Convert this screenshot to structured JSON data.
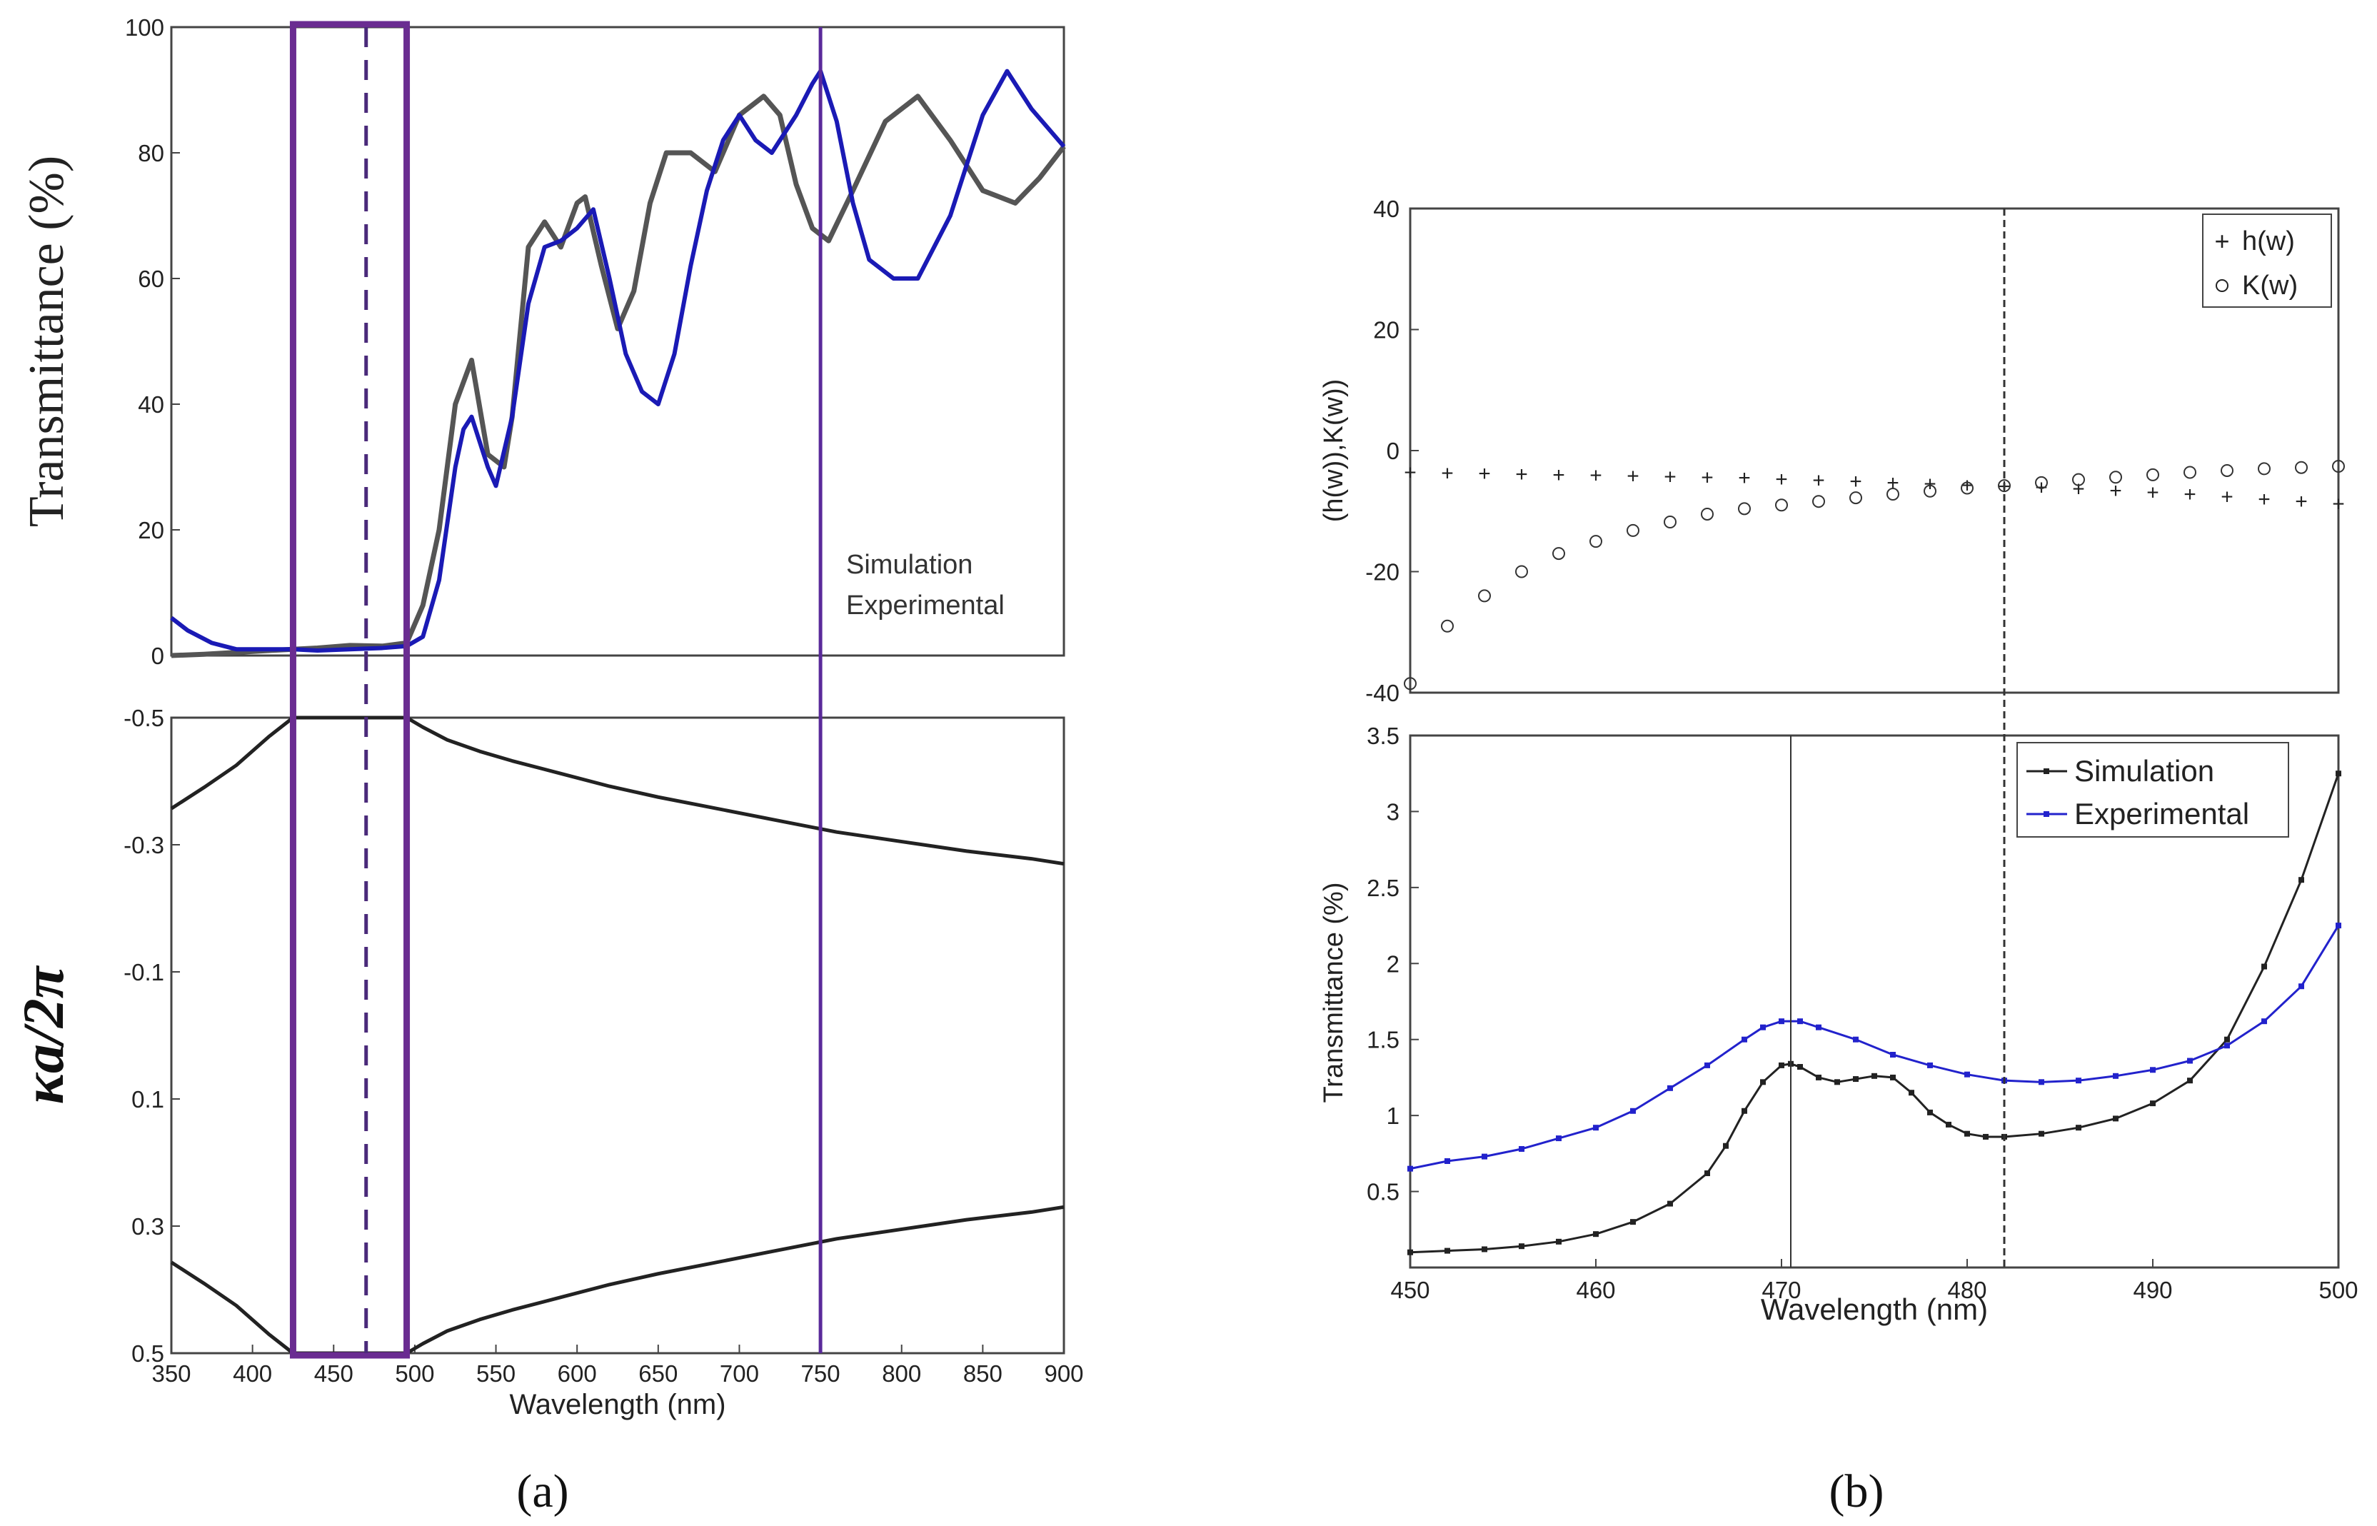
{
  "panel_labels": {
    "a": "(a)",
    "b": "(b)"
  },
  "chart_data": [
    {
      "id": "a-top",
      "type": "line",
      "ylabel": "Transmittance (%)",
      "xlabel": "",
      "xlim": [
        350,
        900
      ],
      "ylim": [
        0,
        100
      ],
      "yticks": [
        "0",
        "20",
        "40",
        "60",
        "80",
        "100"
      ],
      "legend": [
        "Simulation",
        "Experimental"
      ],
      "legend_position": "bottom-right",
      "colors": {
        "Simulation": "#555555",
        "Experimental": "#1a1ab5"
      },
      "series": [
        {
          "name": "Simulation",
          "x": [
            350,
            370,
            390,
            410,
            425,
            440,
            460,
            480,
            495,
            505,
            515,
            525,
            535,
            545,
            555,
            560,
            570,
            580,
            590,
            600,
            605,
            615,
            625,
            635,
            645,
            655,
            670,
            685,
            700,
            715,
            725,
            735,
            745,
            755,
            770,
            790,
            810,
            830,
            850,
            870,
            885,
            900
          ],
          "y": [
            0,
            0.2,
            0.5,
            0.8,
            1,
            1.2,
            1.6,
            1.5,
            2,
            8,
            20,
            40,
            47,
            32,
            30,
            38,
            65,
            69,
            65,
            72,
            73,
            62,
            52,
            58,
            72,
            80,
            80,
            77,
            86,
            89,
            86,
            75,
            68,
            66,
            74,
            85,
            89,
            82,
            74,
            72,
            76,
            81
          ]
        },
        {
          "name": "Experimental",
          "x": [
            350,
            360,
            375,
            390,
            410,
            425,
            440,
            460,
            480,
            495,
            505,
            515,
            525,
            530,
            535,
            545,
            550,
            560,
            570,
            580,
            590,
            600,
            610,
            620,
            630,
            640,
            650,
            660,
            670,
            680,
            690,
            700,
            710,
            720,
            735,
            745,
            750,
            760,
            770,
            780,
            795,
            810,
            830,
            850,
            865,
            880,
            900
          ],
          "y": [
            6,
            4,
            2,
            1,
            1,
            1,
            0.8,
            1,
            1.2,
            1.5,
            3,
            12,
            30,
            36,
            38,
            30,
            27,
            38,
            56,
            65,
            66,
            68,
            71,
            60,
            48,
            42,
            40,
            48,
            62,
            74,
            82,
            86,
            82,
            80,
            86,
            91,
            93,
            85,
            72,
            63,
            60,
            60,
            70,
            86,
            93,
            87,
            81
          ]
        }
      ]
    },
    {
      "id": "a-bottom",
      "type": "line",
      "ylabel": "κa/2π",
      "xlabel": "Wavelength (nm)",
      "xlim": [
        350,
        900
      ],
      "ylim": [
        -0.5,
        0.5
      ],
      "xticks": [
        "350",
        "400",
        "450",
        "500",
        "550",
        "600",
        "650",
        "700",
        "750",
        "800",
        "850",
        "900"
      ],
      "yticks": [
        "-0.5",
        "-0.3",
        "-0.1",
        "0.1",
        "0.3",
        "0.5"
      ],
      "series": [
        {
          "name": "upper",
          "x": [
            350,
            370,
            390,
            410,
            425,
            440,
            460,
            480,
            495,
            505,
            520,
            540,
            560,
            590,
            620,
            650,
            680,
            720,
            760,
            800,
            840,
            880,
            900
          ],
          "y": [
            -0.357,
            -0.39,
            -0.425,
            -0.47,
            -0.5,
            -0.5,
            -0.5,
            -0.5,
            -0.5,
            -0.485,
            -0.465,
            -0.447,
            -0.432,
            -0.412,
            -0.392,
            -0.375,
            -0.36,
            -0.34,
            -0.32,
            -0.305,
            -0.29,
            -0.278,
            -0.27
          ]
        },
        {
          "name": "lower",
          "x": [
            350,
            370,
            390,
            410,
            425,
            440,
            460,
            480,
            495,
            505,
            520,
            540,
            560,
            590,
            620,
            650,
            680,
            720,
            760,
            800,
            840,
            880,
            900
          ],
          "y": [
            0.357,
            0.39,
            0.425,
            0.47,
            0.5,
            0.5,
            0.5,
            0.5,
            0.5,
            0.485,
            0.465,
            0.447,
            0.432,
            0.412,
            0.392,
            0.375,
            0.36,
            0.34,
            0.32,
            0.305,
            0.29,
            0.278,
            0.27
          ]
        }
      ],
      "annotations": {
        "box_x": [
          425,
          495
        ],
        "dashed_line_x": 470,
        "solid_line_x": 750
      }
    },
    {
      "id": "b-top",
      "type": "scatter",
      "ylabel": "(h(w)),K(w))",
      "xlim": [
        450,
        500
      ],
      "ylim": [
        -40,
        40
      ],
      "yticks": [
        "-40",
        "-20",
        "0",
        "20",
        "40"
      ],
      "legend": [
        "h(w)",
        "K(w)"
      ],
      "legend_position": "top-right",
      "series": [
        {
          "name": "h(w)",
          "marker": "plus",
          "x": [
            450,
            452,
            454,
            456,
            458,
            460,
            462,
            464,
            466,
            468,
            470,
            472,
            474,
            476,
            478,
            480,
            482,
            484,
            486,
            488,
            490,
            492,
            494,
            496,
            498,
            500
          ],
          "y": [
            -3.6,
            -3.7,
            -3.8,
            -3.9,
            -4,
            -4.1,
            -4.2,
            -4.3,
            -4.4,
            -4.5,
            -4.7,
            -4.9,
            -5.1,
            -5.3,
            -5.5,
            -5.7,
            -5.9,
            -6.1,
            -6.3,
            -6.6,
            -6.9,
            -7.2,
            -7.6,
            -8,
            -8.4,
            -8.8
          ]
        },
        {
          "name": "K(w)",
          "marker": "circle",
          "x": [
            450,
            452,
            454,
            456,
            458,
            460,
            462,
            464,
            466,
            468,
            470,
            472,
            474,
            476,
            478,
            480,
            482,
            484,
            486,
            488,
            490,
            492,
            494,
            496,
            498,
            500
          ],
          "y": [
            -38.5,
            -29,
            -24,
            -20,
            -17,
            -15,
            -13.2,
            -11.8,
            -10.5,
            -9.6,
            -9,
            -8.4,
            -7.8,
            -7.2,
            -6.7,
            -6.2,
            -5.8,
            -5.3,
            -4.8,
            -4.4,
            -4,
            -3.6,
            -3.3,
            -3,
            -2.8,
            -2.6
          ]
        }
      ],
      "annotations": {
        "dashed_line_x": 482
      }
    },
    {
      "id": "b-bottom",
      "type": "line",
      "ylabel": "Transmittance (%)",
      "xlabel": "Wavelength (nm)",
      "xlim": [
        450,
        500
      ],
      "ylim": [
        0,
        3.5
      ],
      "xticks": [
        "450",
        "460",
        "470",
        "480",
        "490",
        "500"
      ],
      "yticks": [
        "0.5",
        "1",
        "1.5",
        "2",
        "2.5",
        "3",
        "3.5"
      ],
      "legend": [
        "Simulation",
        "Experimental"
      ],
      "legend_position": "top-right",
      "colors": {
        "Simulation": "#222222",
        "Experimental": "#2222cc"
      },
      "series": [
        {
          "name": "Simulation",
          "x": [
            450,
            452,
            454,
            456,
            458,
            460,
            462,
            464,
            466,
            467,
            468,
            469,
            470,
            470.5,
            471,
            472,
            473,
            474,
            475,
            476,
            477,
            478,
            479,
            480,
            481,
            482,
            484,
            486,
            488,
            490,
            492,
            494,
            496,
            498,
            500
          ],
          "y": [
            0.1,
            0.11,
            0.12,
            0.14,
            0.17,
            0.22,
            0.3,
            0.42,
            0.62,
            0.8,
            1.03,
            1.22,
            1.33,
            1.34,
            1.32,
            1.25,
            1.22,
            1.24,
            1.26,
            1.25,
            1.15,
            1.02,
            0.94,
            0.88,
            0.86,
            0.86,
            0.88,
            0.92,
            0.98,
            1.08,
            1.23,
            1.5,
            1.98,
            2.55,
            3.25
          ]
        },
        {
          "name": "Experimental",
          "x": [
            450,
            452,
            454,
            456,
            458,
            460,
            462,
            464,
            466,
            468,
            469,
            470,
            471,
            472,
            474,
            476,
            478,
            480,
            482,
            484,
            486,
            488,
            490,
            492,
            494,
            496,
            498,
            500
          ],
          "y": [
            0.65,
            0.7,
            0.73,
            0.78,
            0.85,
            0.92,
            1.03,
            1.18,
            1.33,
            1.5,
            1.58,
            1.62,
            1.62,
            1.58,
            1.5,
            1.4,
            1.33,
            1.27,
            1.23,
            1.22,
            1.23,
            1.26,
            1.3,
            1.36,
            1.46,
            1.62,
            1.85,
            2.25
          ]
        }
      ],
      "annotations": {
        "solid_line_x": 470.5,
        "dashed_line_x": 482
      }
    }
  ]
}
